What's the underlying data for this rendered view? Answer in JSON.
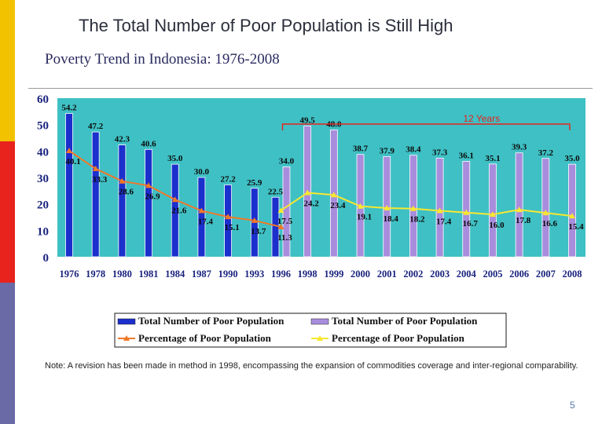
{
  "slide": {
    "title": "The Total Number of Poor Population is Still High",
    "chart_title": "Poverty Trend in Indonesia: 1976-2008",
    "note": "Note:  A revision has been made in method in 1998, encompassing the expansion of commodities coverage and inter-regional comparability.",
    "page_number": "5"
  },
  "colors": {
    "plot_bg": "#3fc0c4",
    "bar_old": "#1b2fcc",
    "bar_new": "#a98ddd",
    "line_old": "#f07828",
    "line_new": "#f8e830",
    "annotation": "#e8221c"
  },
  "chart_data": {
    "type": "bar",
    "title": "Poverty Trend in Indonesia: 1976-2008",
    "categories": [
      "1976",
      "1978",
      "1980",
      "1981",
      "1984",
      "1987",
      "1990",
      "1993",
      "1996",
      "1998",
      "1999",
      "2000",
      "2001",
      "2002",
      "2003",
      "2004",
      "2005",
      "2006",
      "2007",
      "2008"
    ],
    "ylim": [
      0,
      60
    ],
    "yticks": [
      "0",
      "10",
      "20",
      "30",
      "40",
      "50",
      "60"
    ],
    "series": [
      {
        "name": "Total Number of Poor Population",
        "kind": "bar",
        "color_key": "bar_old",
        "values": [
          54.2,
          47.2,
          42.3,
          40.6,
          35.0,
          30.0,
          27.2,
          25.9,
          22.5,
          null,
          null,
          null,
          null,
          null,
          null,
          null,
          null,
          null,
          null,
          null
        ],
        "labels": [
          "54.2",
          "47.2",
          "42.3",
          "40.6",
          "35.0",
          "30.0",
          "27.2",
          "25.9",
          "22.5",
          "",
          "",
          "",
          "",
          "",
          "",
          "",
          "",
          "",
          "",
          ""
        ]
      },
      {
        "name": "Total Number of Poor Population",
        "kind": "bar",
        "color_key": "bar_new",
        "values": [
          null,
          null,
          null,
          null,
          null,
          null,
          null,
          null,
          34.0,
          49.5,
          48.0,
          38.7,
          37.9,
          38.4,
          37.3,
          36.1,
          35.1,
          39.3,
          37.2,
          35.0
        ],
        "labels": [
          "",
          "",
          "",
          "",
          "",
          "",
          "",
          "",
          "34.0",
          "49.5",
          "48.0",
          "38.7",
          "37.9",
          "38.4",
          "37.3",
          "36.1",
          "35.1",
          "39.3",
          "37.2",
          "35.0"
        ]
      },
      {
        "name": "Percentage of Poor Population",
        "kind": "line",
        "color_key": "line_old",
        "values": [
          40.1,
          33.3,
          28.6,
          26.9,
          21.6,
          17.4,
          15.1,
          13.7,
          11.3,
          null,
          null,
          null,
          null,
          null,
          null,
          null,
          null,
          null,
          null,
          null
        ],
        "labels": [
          "40.1",
          "33.3",
          "28.6",
          "26.9",
          "21.6",
          "17.4",
          "15.1",
          "13.7",
          "11.3",
          "",
          "",
          "",
          "",
          "",
          "",
          "",
          "",
          "",
          "",
          ""
        ]
      },
      {
        "name": "Percentage of Poor Population",
        "kind": "line",
        "color_key": "line_new",
        "values": [
          null,
          null,
          null,
          null,
          null,
          null,
          null,
          null,
          17.5,
          24.2,
          23.4,
          19.1,
          18.4,
          18.2,
          17.4,
          16.7,
          16.0,
          17.8,
          16.6,
          15.4
        ],
        "labels": [
          "",
          "",
          "",
          "",
          "",
          "",
          "",
          "",
          "17.5",
          "24.2",
          "23.4",
          "19.1",
          "18.4",
          "18.2",
          "17.4",
          "16.7",
          "16.0",
          "17.8",
          "16.6",
          "15.4"
        ]
      }
    ],
    "annotations": [
      {
        "text": "12 Years",
        "from": "1996",
        "to": "2008"
      }
    ],
    "legend": {
      "placement": "bottom",
      "items": [
        "Total Number of Poor Population",
        "Total Number of Poor Population",
        "Percentage of Poor Population",
        "Percentage of Poor Population"
      ]
    }
  }
}
